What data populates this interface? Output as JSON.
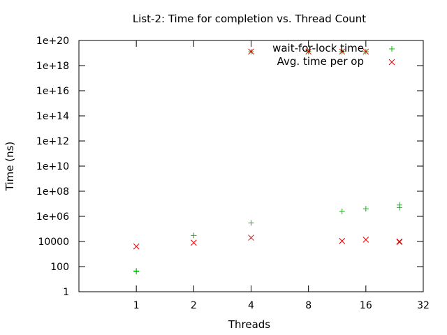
{
  "chart_data": {
    "type": "scatter",
    "title": "List-2: Time for completion vs. Thread Count",
    "xlabel": "Threads",
    "ylabel": "Time (ns)",
    "x_scale": "log2",
    "y_scale": "log10",
    "xlim": [
      0.5,
      32
    ],
    "ylim": [
      1,
      1e+20
    ],
    "x_ticks": [
      {
        "value": 1,
        "label": "1"
      },
      {
        "value": 2,
        "label": "2"
      },
      {
        "value": 4,
        "label": "4"
      },
      {
        "value": 8,
        "label": "8"
      },
      {
        "value": 16,
        "label": "16"
      },
      {
        "value": 32,
        "label": "32"
      }
    ],
    "y_ticks": [
      {
        "value": 1,
        "label": "1"
      },
      {
        "value": 100,
        "label": "100"
      },
      {
        "value": 10000,
        "label": "10000"
      },
      {
        "value": 1000000,
        "label": "1e+06"
      },
      {
        "value": 100000000,
        "label": "1e+08"
      },
      {
        "value": 10000000000,
        "label": "1e+10"
      },
      {
        "value": 1000000000000,
        "label": "1e+12"
      },
      {
        "value": 100000000000000,
        "label": "1e+14"
      },
      {
        "value": 10000000000000000,
        "label": "1e+16"
      },
      {
        "value": 1000000000000000000,
        "label": "1e+18"
      },
      {
        "value": 100000000000000000000,
        "label": "1e+20"
      }
    ],
    "legend_position": "top-right",
    "series": [
      {
        "name": "wait-for-lock time",
        "marker": "plus",
        "color": "#00c000",
        "points": [
          {
            "x": 1,
            "y": 40
          },
          {
            "x": 1,
            "y": 45
          },
          {
            "x": 2,
            "y": 30000
          },
          {
            "x": 4,
            "y": 300000
          },
          {
            "x": 4,
            "y": 1.3e+19
          },
          {
            "x": 8,
            "y": 1.3e+19
          },
          {
            "x": 12,
            "y": 2500000.0
          },
          {
            "x": 12,
            "y": 1.3e+19
          },
          {
            "x": 16,
            "y": 4000000.0
          },
          {
            "x": 16,
            "y": 1.3e+19
          },
          {
            "x": 24,
            "y": 5000000.0
          },
          {
            "x": 24,
            "y": 8000000.0
          }
        ]
      },
      {
        "name": "Avg. time per op",
        "marker": "cross",
        "color": "#e00000",
        "points": [
          {
            "x": 1,
            "y": 4000
          },
          {
            "x": 2,
            "y": 8000
          },
          {
            "x": 4,
            "y": 20000
          },
          {
            "x": 4,
            "y": 1.3e+19
          },
          {
            "x": 8,
            "y": 1.3e+19
          },
          {
            "x": 12,
            "y": 11000
          },
          {
            "x": 12,
            "y": 1.3e+19
          },
          {
            "x": 16,
            "y": 14000
          },
          {
            "x": 16,
            "y": 1.3e+19
          },
          {
            "x": 24,
            "y": 10000
          },
          {
            "x": 24,
            "y": 9000
          }
        ]
      }
    ]
  }
}
